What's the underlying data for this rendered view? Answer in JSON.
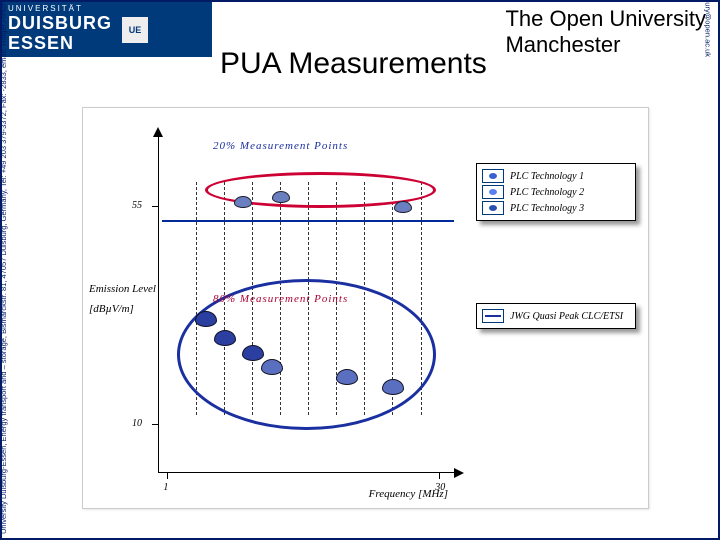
{
  "header": {
    "logo_line1": "UNIVERSITÄT",
    "logo_big1": "DUISBURG",
    "logo_big2": "ESSEN",
    "right_title_l1": "The Open University",
    "right_title_l2": "Manchester",
    "title": "PUA Measurements"
  },
  "side_left": "University Duisburg-Essen, Energy transport and – storage, Bismarckstr. 81, 47057 Duisburg, Germany, Tel: +49 203 379-3372, Fax: -2833, email: Holger.Hirsch@ets.uni-duisburg.de",
  "side_right": "The Open University Manchester, 351 Altrincham Rd, Sharston, Manchester M22 4UN, United Kingdom, tel. +44 (0) 8450 762010, email: j.newbury@open.ac.uk",
  "chart": {
    "type": "scatter-with-bands",
    "y_label": "Emission Level",
    "y_unit": "[dBµV/m]",
    "x_label": "Frequency [MHz]",
    "x_ticks": [
      1,
      30
    ],
    "y_ticks": [
      10,
      55
    ],
    "xlim": [
      0,
      32
    ],
    "ylim": [
      0,
      70
    ],
    "band20": {
      "label": "20% Measurement Points",
      "label_color": "#1a2fa0",
      "ellipse_color": "#cc0033",
      "points": [
        {
          "x": 9,
          "y": 56,
          "color": "#6a7fbf"
        },
        {
          "x": 13,
          "y": 57,
          "color": "#6a7fbf"
        },
        {
          "x": 26,
          "y": 55,
          "color": "#6a7fbf"
        }
      ]
    },
    "limit_line": {
      "y": 52,
      "color": "#002a9a"
    },
    "band80": {
      "label": "80% Measurement Points",
      "label_color": "#aa0033",
      "ellipse_color": "#1a2fa0",
      "points": [
        {
          "x": 5,
          "y": 32,
          "color": "#2a3fa0"
        },
        {
          "x": 7,
          "y": 28,
          "color": "#2a3fa0"
        },
        {
          "x": 10,
          "y": 25,
          "color": "#2a3fa0"
        },
        {
          "x": 12,
          "y": 22,
          "color": "#5a6fbf"
        },
        {
          "x": 20,
          "y": 20,
          "color": "#5a6fbf"
        },
        {
          "x": 25,
          "y": 18,
          "color": "#5a6fbf"
        }
      ]
    },
    "dash_lines_x": [
      4,
      7,
      10,
      13,
      16,
      19,
      22,
      25,
      28
    ],
    "legend_top": {
      "items": [
        {
          "label": "PLC Technology 1",
          "color": "#3a5fcf"
        },
        {
          "label": "PLC Technology 2",
          "color": "#5a7fef"
        },
        {
          "label": "PLC Technology 3",
          "color": "#2a4faf"
        }
      ]
    },
    "legend_mid": {
      "label": "JWG Quasi Peak CLC/ETSI",
      "color": "#1a2fa0"
    }
  },
  "colors": {
    "frame": "#001a66",
    "bg": "#ffffff"
  }
}
